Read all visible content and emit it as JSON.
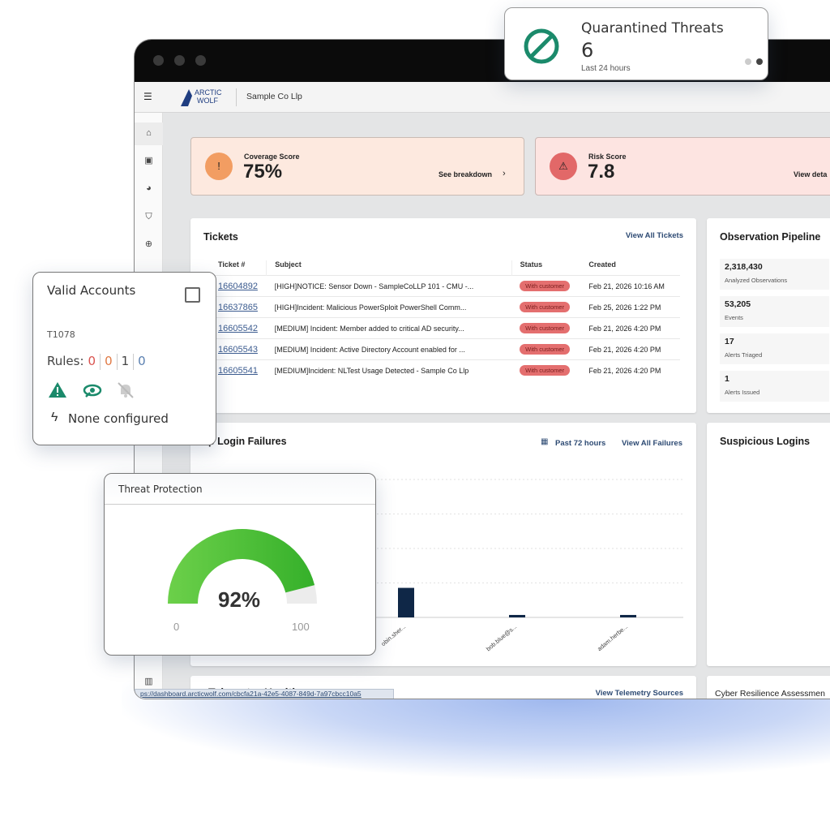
{
  "browser": {
    "url": "ps://dashboard.arcticwolf.com/cbcfa21a-42e5-4087-849d-7a97cbcc10a5"
  },
  "header": {
    "logo_top": "ARCTIC",
    "logo_bottom": "WOLF",
    "org": "Sample Co Llp"
  },
  "sidebar": {
    "icons": [
      "home-icon",
      "briefcase-icon",
      "gauge-icon",
      "shield-icon",
      "crosshair-icon",
      "chart-icon"
    ]
  },
  "scores": {
    "coverage": {
      "label": "Coverage Score",
      "value": "75%",
      "link": "See breakdown",
      "color": "#f29d62",
      "bg": "#fde9df"
    },
    "risk": {
      "label": "Risk Score",
      "value": "7.8",
      "link": "View deta",
      "color": "#e26868",
      "bg": "#fde4e1"
    }
  },
  "tickets": {
    "title": "Tickets",
    "view_all": "View All Tickets",
    "columns": [
      "Ticket #",
      "Subject",
      "Status",
      "Created"
    ],
    "rows": [
      {
        "id": "16604892",
        "subject": "[HIGH]NOTICE: Sensor Down - SampleCoLLP 101 - CMU -...",
        "status": "With customer",
        "created": "Feb 21, 2026 10:16 AM"
      },
      {
        "id": "16637865",
        "subject": "[HIGH]Incident: Malicious PowerSploit PowerShell Comm...",
        "status": "With customer",
        "created": "Feb 25, 2026 1:22 PM"
      },
      {
        "id": "16605542",
        "subject": "[MEDIUM] Incident: Member added to critical AD security...",
        "status": "With customer",
        "created": "Feb 21, 2026 4:20 PM"
      },
      {
        "id": "16605543",
        "subject": "[MEDIUM] Incident: Active Directory Account enabled for ...",
        "status": "With customer",
        "created": "Feb 21, 2026 4:20 PM"
      },
      {
        "id": "16605541",
        "subject": "[MEDIUM]Incident: NLTest Usage Detected - Sample Co Llp",
        "status": "With customer",
        "created": "Feb 21, 2026 4:20 PM"
      }
    ]
  },
  "pipeline": {
    "title": "Observation Pipeline",
    "items": [
      {
        "value": "2,318,430",
        "label": "Analyzed Observations"
      },
      {
        "value": "53,205",
        "label": "Events"
      },
      {
        "value": "17",
        "label": "Alerts Triaged"
      },
      {
        "value": "1",
        "label": "Alerts Issued"
      }
    ]
  },
  "login_failures": {
    "title": "p Login Failures",
    "range": "Past 72 hours",
    "view_all": "View All Failures"
  },
  "chart_data": {
    "type": "bar",
    "categories": [
      "obin.sher...",
      "bob.blue@s...",
      "adam.herbe..."
    ],
    "values": [
      12,
      1,
      1
    ],
    "ylim": [
      0,
      56
    ],
    "grid": true,
    "color": "#0f2747"
  },
  "suspicious": {
    "title": "Suspicious Logins"
  },
  "telemetry": {
    "title": "Telemetry Health",
    "link": "View Telemetry Sources"
  },
  "cyber": {
    "title": "Cyber Resilience Assessmen"
  },
  "quarantined": {
    "title": "Quarantined Threats",
    "value": "6",
    "sub": "Last 24 hours",
    "color": "#1b8a6b"
  },
  "valid_accounts": {
    "title": "Valid Accounts",
    "id": "T1078",
    "rules_label": "Rules:",
    "rules": [
      "0",
      "0",
      "1",
      "0"
    ],
    "rule_colors": [
      "#d9534f",
      "#e07a45",
      "#444",
      "#5a7fb0"
    ],
    "trigger": "None configured"
  },
  "threat_protection": {
    "title": "Threat Protection",
    "value": 92,
    "value_label": "92%",
    "min": "0",
    "max": "100"
  }
}
